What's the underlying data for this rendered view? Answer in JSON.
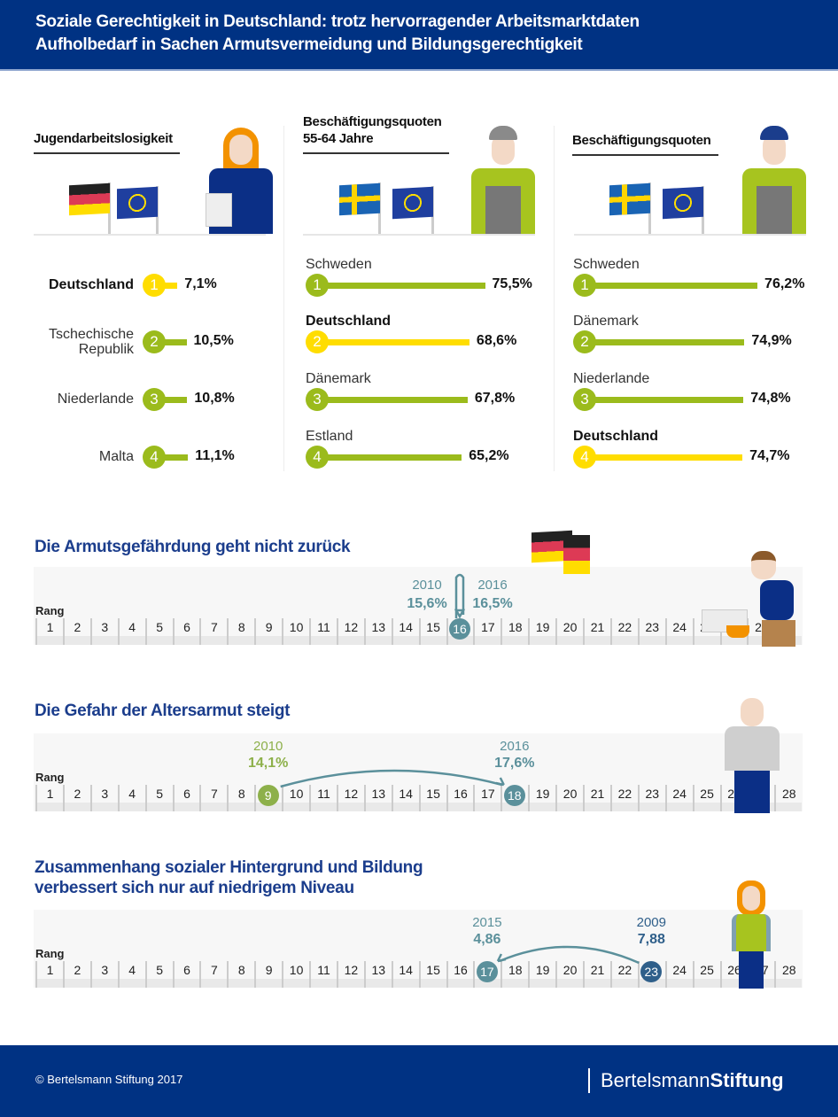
{
  "header": {
    "title_line1": "Soziale Gerechtigkeit in Deutschland: trotz hervorragender Arbeitsmarktdaten",
    "title_line2": "Aufholbedarf in Sachen Armutsvermeidung und Bildungsgerechtigkeit"
  },
  "colors": {
    "brand_blue": "#003283",
    "green": "#9bbb1c",
    "yellow": "#ffdd00",
    "teal": "#5b909b",
    "title_blue": "#1b3d8c"
  },
  "panels": [
    {
      "title": "Jugendarbeitslosigkeit",
      "illustration": "woman-with-cv",
      "flags": [
        "germany",
        "eu"
      ],
      "rows": [
        {
          "rank": "1",
          "country": "Deutschland",
          "value": "7,1%",
          "highlight": true
        },
        {
          "rank": "2",
          "country": "Tschechische Republik",
          "value": "10,5%"
        },
        {
          "rank": "3",
          "country": "Niederlande",
          "value": "10,8%"
        },
        {
          "rank": "4",
          "country": "Malta",
          "value": "11,1%"
        }
      ]
    },
    {
      "title_line1": "Beschäftigungsquoten",
      "title_line2": "55-64 Jahre",
      "illustration": "older-worker-helmet",
      "flags": [
        "sweden",
        "eu"
      ],
      "rows": [
        {
          "rank": "1",
          "country": "Schweden",
          "value": "75,5%"
        },
        {
          "rank": "2",
          "country": "Deutschland",
          "value": "68,6%",
          "highlight": true
        },
        {
          "rank": "3",
          "country": "Dänemark",
          "value": "67,8%"
        },
        {
          "rank": "4",
          "country": "Estland",
          "value": "65,2%"
        }
      ]
    },
    {
      "title": "Beschäftigungsquoten",
      "illustration": "worker-blue-helmet",
      "flags": [
        "sweden",
        "eu"
      ],
      "rows": [
        {
          "rank": "1",
          "country": "Schweden",
          "value": "76,2%"
        },
        {
          "rank": "2",
          "country": "Dänemark",
          "value": "74,9%"
        },
        {
          "rank": "3",
          "country": "Niederlande",
          "value": "74,8%"
        },
        {
          "rank": "4",
          "country": "Deutschland",
          "value": "74,7%",
          "highlight": true
        }
      ]
    }
  ],
  "sections": [
    {
      "title": "Die Armutsgefährdung geht nicht zurück",
      "rank_label": "Rang",
      "illustration": "man-with-laptop",
      "flag": "germany",
      "markers": [
        {
          "year": "2010",
          "value": "15,6%",
          "rank": 16
        },
        {
          "year": "2016",
          "value": "16,5%",
          "rank": 16
        }
      ]
    },
    {
      "title": "Die Gefahr der Altersarmut steigt",
      "rank_label": "Rang",
      "illustration": "old-man",
      "markers": [
        {
          "year": "2010",
          "value": "14,1%",
          "rank": 9
        },
        {
          "year": "2016",
          "value": "17,6%",
          "rank": 18
        }
      ]
    },
    {
      "title_line1": "Zusammenhang sozialer Hintergrund und Bildung",
      "title_line2": "verbessert sich nur auf niedrigem Niveau",
      "rank_label": "Rang",
      "illustration": "student-backpack",
      "markers": [
        {
          "year": "2009",
          "value": "7,88",
          "rank": 23
        },
        {
          "year": "2015",
          "value": "4,86",
          "rank": 17
        }
      ]
    }
  ],
  "chart_data": [
    {
      "type": "bar",
      "title": "Jugendarbeitslosigkeit",
      "categories": [
        "Deutschland",
        "Tschechische Republik",
        "Niederlande",
        "Malta"
      ],
      "values": [
        7.1,
        10.5,
        10.8,
        11.1
      ],
      "unit": "%"
    },
    {
      "type": "bar",
      "title": "Beschäftigungsquoten 55-64 Jahre",
      "categories": [
        "Schweden",
        "Deutschland",
        "Dänemark",
        "Estland"
      ],
      "values": [
        75.5,
        68.6,
        67.8,
        65.2
      ],
      "unit": "%"
    },
    {
      "type": "bar",
      "title": "Beschäftigungsquoten",
      "categories": [
        "Schweden",
        "Dänemark",
        "Niederlande",
        "Deutschland"
      ],
      "values": [
        76.2,
        74.9,
        74.8,
        74.7
      ],
      "unit": "%"
    },
    {
      "type": "table",
      "title": "Die Armutsgefährdung geht nicht zurück",
      "xlabel": "Rang",
      "ranks": [
        1,
        28
      ],
      "series": [
        {
          "name": "2010",
          "rank": 16,
          "value": 15.6
        },
        {
          "name": "2016",
          "rank": 16,
          "value": 16.5
        }
      ]
    },
    {
      "type": "table",
      "title": "Die Gefahr der Altersarmut steigt",
      "xlabel": "Rang",
      "ranks": [
        1,
        28
      ],
      "series": [
        {
          "name": "2010",
          "rank": 9,
          "value": 14.1
        },
        {
          "name": "2016",
          "rank": 18,
          "value": 17.6
        }
      ]
    },
    {
      "type": "table",
      "title": "Zusammenhang sozialer Hintergrund und Bildung verbessert sich nur auf niedrigem Niveau",
      "xlabel": "Rang",
      "ranks": [
        1,
        28
      ],
      "series": [
        {
          "name": "2009",
          "rank": 23,
          "value": 7.88
        },
        {
          "name": "2015",
          "rank": 17,
          "value": 4.86
        }
      ]
    }
  ],
  "footer": {
    "copyright": "© Bertelsmann Stiftung 2017",
    "logo_light": "Bertelsmann",
    "logo_bold": "Stiftung"
  }
}
